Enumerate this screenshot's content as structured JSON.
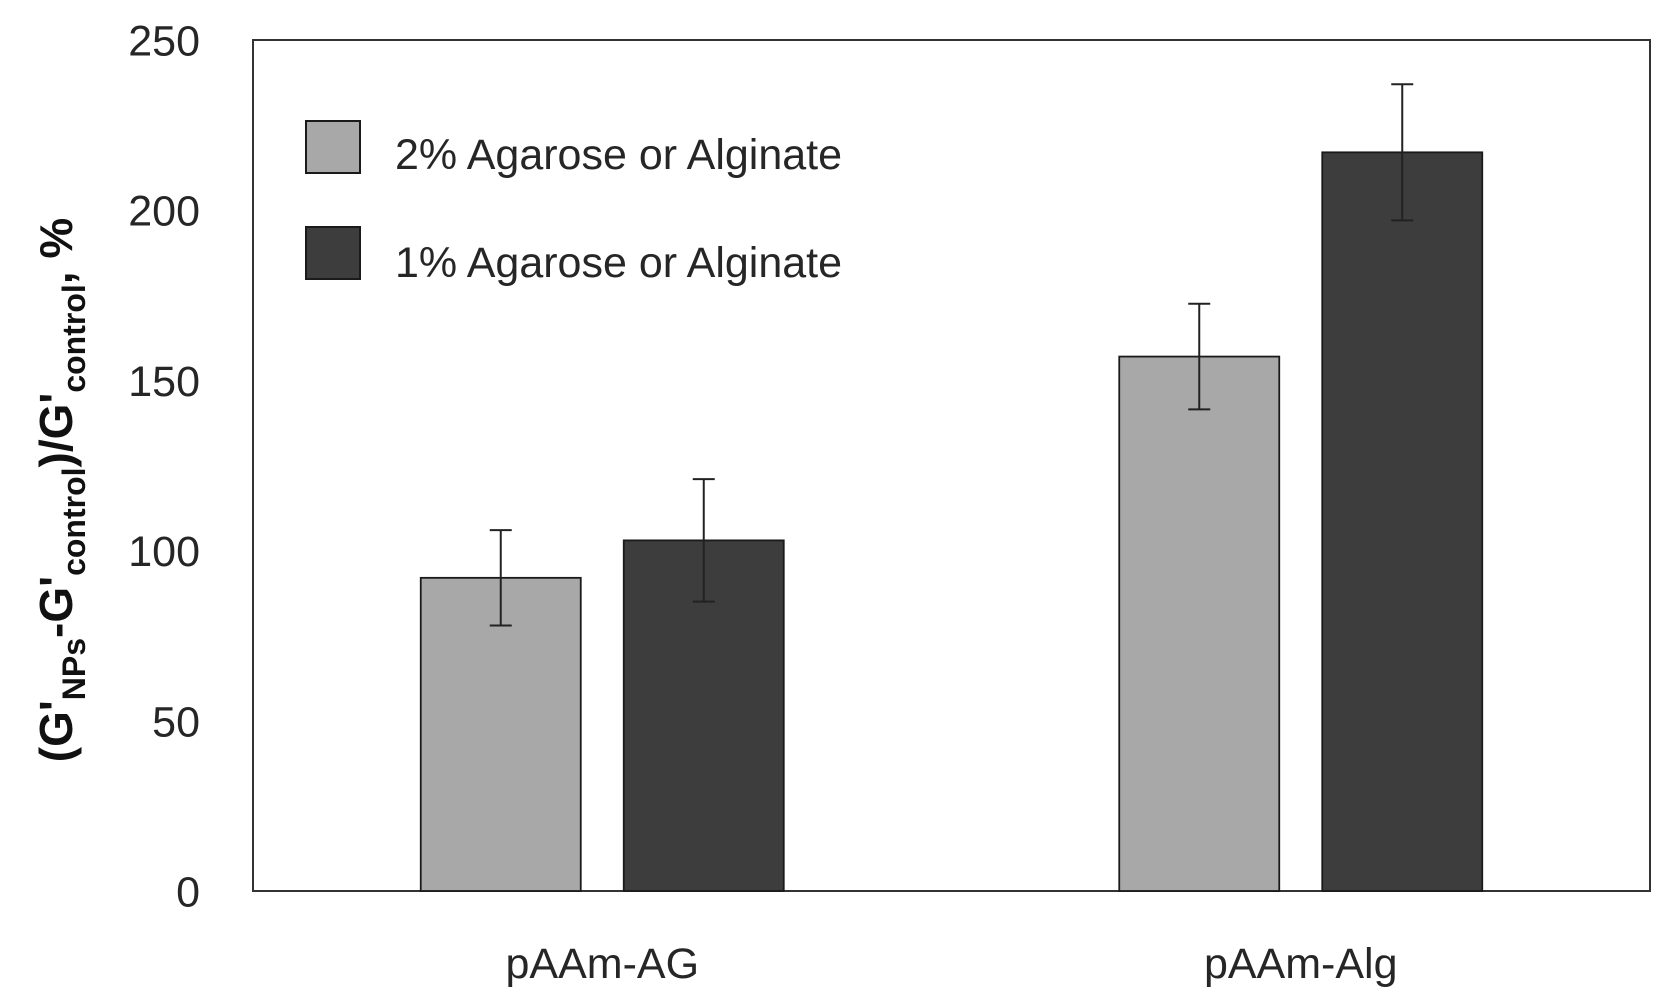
{
  "chart_data": {
    "type": "bar",
    "title": "",
    "xlabel": "",
    "categories": [
      "pAAm-AG",
      "pAAm-Alg"
    ],
    "series": [
      {
        "name": "2% Agarose or Alginate",
        "values": [
          92,
          157
        ],
        "errors": [
          14,
          15.5
        ],
        "color": "#a8a8a8"
      },
      {
        "name": "1% Agarose or Alginate",
        "values": [
          103,
          217
        ],
        "errors": [
          18,
          20
        ],
        "color": "#3d3d3d"
      }
    ],
    "ylabel_parts": [
      {
        "text": "(G'",
        "sub": false
      },
      {
        "text": "NPs",
        "sub": true
      },
      {
        "text": "-G'",
        "sub": false
      },
      {
        "text": "control",
        "sub": true
      },
      {
        "text": ")/G'",
        "sub": false
      },
      {
        "text": "control",
        "sub": true
      },
      {
        "text": ", %",
        "sub": false
      }
    ],
    "ylim": [
      0,
      250
    ],
    "yticks": [
      0,
      50,
      100,
      150,
      200,
      250
    ],
    "grid": false,
    "legend": "top-left"
  }
}
